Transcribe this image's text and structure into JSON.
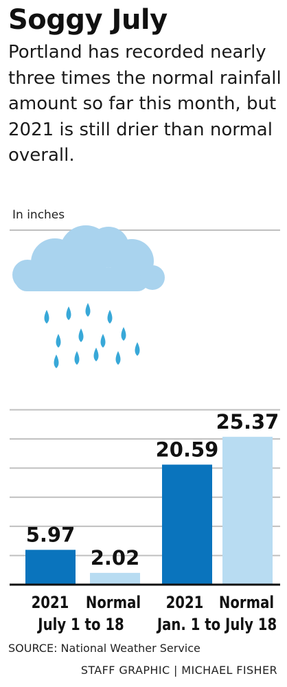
{
  "header": {
    "title": "Soggy July",
    "subtitle": "Portland has recorded nearly three times the normal rainfall amount so far this month, but 2021 is still drier than normal overall."
  },
  "chart_data": {
    "type": "bar",
    "unit_label": "In inches",
    "ylim": [
      0,
      30
    ],
    "grid": true,
    "categories": [
      "2021",
      "Normal",
      "2021",
      "Normal"
    ],
    "groups": [
      "July 1 to 18",
      "Jan. 1 to July 18"
    ],
    "values": [
      5.97,
      2.02,
      20.59,
      25.37
    ],
    "value_labels": [
      "5.97",
      "2.02",
      "20.59",
      "25.37"
    ],
    "bar_colors": [
      "#0a74bd",
      "#b8dcf2",
      "#0a74bd",
      "#b8dcf2"
    ],
    "gridline_color": "#bfbfbf",
    "baseline_color": "#111111"
  },
  "footer": {
    "source": "SOURCE: National Weather Service",
    "credit": "STAFF GRAPHIC | MICHAEL FISHER"
  },
  "illustration": {
    "icon": "rain-cloud-icon",
    "cloud_color": "#a9d3ee",
    "drop_color": "#38a8d8"
  }
}
